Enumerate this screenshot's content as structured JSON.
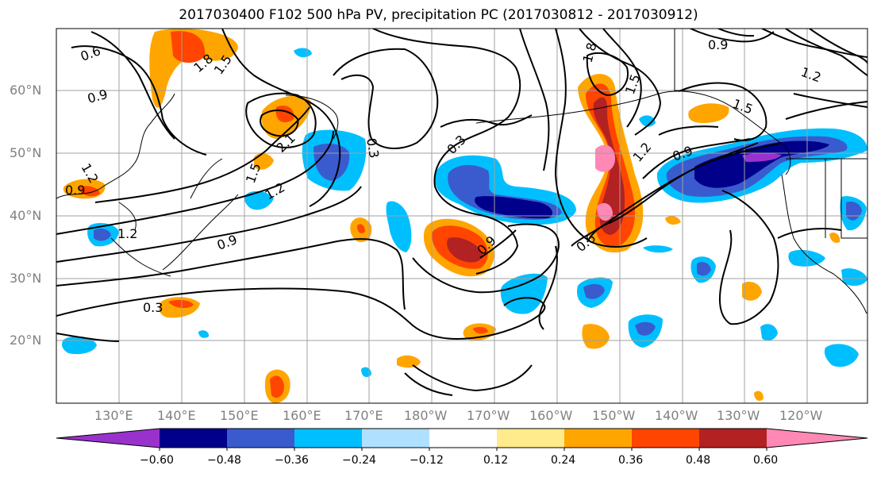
{
  "title": "2017030400 F102 500 hPa PV, precipitation PC (2017030812 - 2017030912)",
  "lat_labels": [
    "60°N",
    "50°N",
    "40°N",
    "30°N",
    "20°N"
  ],
  "lon_labels": [
    "130°E",
    "140°E",
    "150°E",
    "160°E",
    "170°E",
    "180°W",
    "170°W",
    "160°W",
    "150°W",
    "140°W",
    "130°W",
    "120°W"
  ],
  "colorbar": {
    "ticks": [
      "−0.60",
      "−0.48",
      "−0.36",
      "−0.24",
      "−0.12",
      "0.12",
      "0.24",
      "0.36",
      "0.48",
      "0.60"
    ],
    "colors": [
      "#9932cc",
      "#00008b",
      "#3a5bcd",
      "#00bfff",
      "#b0e0ff",
      "#ffffff",
      "#ffeb8c",
      "#ffa500",
      "#ff4500",
      "#b22222",
      "#ff88b4"
    ]
  },
  "contour_labels": [
    "0.6",
    "0.9",
    "1.8",
    "1.5",
    "1.2",
    "0.9",
    "0.3",
    "0.3",
    "2.1",
    "1.5",
    "1.2",
    "1.2",
    "0.9",
    "0.6",
    "0.9",
    "0.3",
    "1.8",
    "1.5",
    "1.2",
    "0.9",
    "1.5",
    "0.9",
    "1.2"
  ]
}
